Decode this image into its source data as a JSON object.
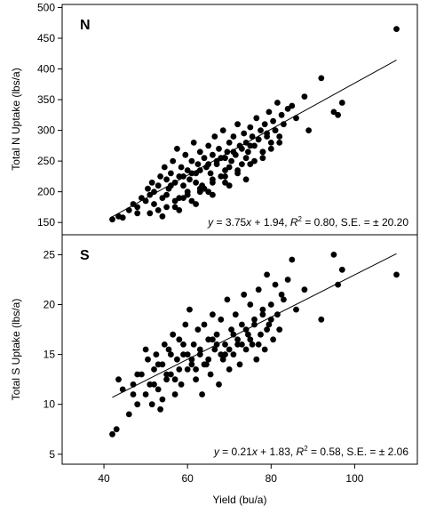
{
  "chart_data": [
    {
      "type": "scatter",
      "panel_label": "N",
      "xlabel": "",
      "ylabel": "Total N Uptake (lbs/a)",
      "xlim": [
        30,
        115
      ],
      "ylim": [
        130,
        505
      ],
      "yticks": [
        150,
        200,
        250,
        300,
        350,
        400,
        450,
        500
      ],
      "equation": {
        "prefix": "y",
        "body": " = 3.75",
        "xvar": "x",
        "mid": " + 1.94, ",
        "r2": "R",
        "sup": "2",
        "tail": " = 0.80, S.E. = ± 20.20"
      },
      "trendline": {
        "x": [
          42,
          110
        ],
        "y": [
          159.4,
          414.4
        ]
      },
      "series": [
        {
          "x": [
            42,
            43.5,
            44.5,
            46,
            47,
            48,
            49,
            50,
            50.5,
            51,
            51.5,
            52,
            53,
            53.5,
            54,
            54.5,
            55,
            55.5,
            56,
            56.5,
            57,
            57.5,
            58,
            58.5,
            59,
            59.5,
            60,
            60.5,
            61,
            61.5,
            62,
            62.5,
            63,
            63.5,
            64,
            64.5,
            65,
            65.5,
            66,
            66.5,
            67,
            67.5,
            68,
            68.5,
            69,
            69.5,
            70,
            70.5,
            71,
            71.5,
            72,
            72.5,
            73,
            73.5,
            74,
            74.5,
            75,
            75.5,
            76,
            76.5,
            77,
            77.5,
            78,
            78.5,
            79,
            79.5,
            80,
            80.5,
            81,
            81.5,
            82,
            82.5,
            83,
            84,
            85,
            86,
            88,
            89,
            92,
            95,
            96,
            97,
            110,
            52,
            55,
            58,
            60,
            62,
            64,
            66,
            68,
            70,
            72,
            74,
            76,
            78,
            80,
            82,
            56,
            59,
            61,
            63,
            65,
            67,
            69,
            71,
            73,
            75,
            77,
            79,
            81,
            57,
            60,
            63,
            66,
            69,
            72,
            75,
            78,
            54,
            58,
            62,
            66,
            70,
            74,
            53,
            57,
            61,
            65,
            69,
            48,
            51,
            55,
            59,
            63
          ],
          "y": [
            155,
            160,
            158,
            170,
            180,
            175,
            190,
            185,
            205,
            195,
            215,
            200,
            210,
            225,
            190,
            240,
            220,
            205,
            230,
            250,
            215,
            270,
            225,
            240,
            210,
            260,
            235,
            220,
            250,
            280,
            230,
            245,
            265,
            210,
            255,
            240,
            275,
            230,
            260,
            290,
            245,
            270,
            255,
            300,
            235,
            265,
            280,
            250,
            290,
            260,
            310,
            275,
            245,
            295,
            280,
            265,
            305,
            290,
            275,
            320,
            285,
            300,
            265,
            310,
            295,
            330,
            280,
            315,
            300,
            345,
            290,
            325,
            310,
            335,
            340,
            320,
            355,
            300,
            385,
            330,
            325,
            345,
            465,
            180,
            195,
            190,
            200,
            215,
            205,
            220,
            225,
            240,
            230,
            255,
            250,
            265,
            270,
            280,
            210,
            225,
            230,
            235,
            245,
            250,
            255,
            265,
            270,
            275,
            285,
            290,
            300,
            185,
            195,
            205,
            215,
            225,
            235,
            245,
            255,
            160,
            170,
            180,
            195,
            210,
            220,
            170,
            175,
            185,
            200,
            215,
            165,
            165,
            175,
            190,
            200
          ]
        }
      ]
    },
    {
      "type": "scatter",
      "panel_label": "S",
      "xlabel": "Yield (bu/a)",
      "ylabel": "Total S Uptake (lbs/a)",
      "xlim": [
        30,
        115
      ],
      "ylim": [
        4,
        27
      ],
      "yticks": [
        5,
        10,
        15,
        20,
        25
      ],
      "xticks": [
        40,
        60,
        80,
        100
      ],
      "equation": {
        "prefix": "y",
        "body": " = 0.21",
        "xvar": "x",
        "mid": " + 1.83, ",
        "r2": "R",
        "sup": "2",
        "tail": " = 0.58, S.E. = ± 2.06"
      },
      "trendline": {
        "x": [
          42,
          110
        ],
        "y": [
          10.7,
          25.1
        ]
      },
      "series": [
        {
          "x": [
            42,
            43,
            43.5,
            44.5,
            46,
            47,
            48,
            49,
            50,
            50.5,
            51,
            51.5,
            52,
            52.5,
            53,
            53.5,
            54,
            54.5,
            55,
            55.5,
            56,
            56.5,
            57,
            57.5,
            58,
            58.5,
            59,
            59.5,
            60,
            60.5,
            61,
            61.5,
            62,
            62.5,
            63,
            63.5,
            64,
            64.5,
            65,
            65.5,
            66,
            66.5,
            67,
            67.5,
            68,
            68.5,
            69,
            69.5,
            70,
            70.5,
            71,
            71.5,
            72,
            72.5,
            73,
            73.5,
            74,
            74.5,
            75,
            75.5,
            76,
            76.5,
            77,
            77.5,
            78,
            78.5,
            79,
            79.5,
            80,
            80.5,
            81,
            81.5,
            82,
            82.5,
            83,
            84,
            85,
            86,
            88,
            92,
            95,
            96,
            97,
            110,
            53,
            56,
            59,
            61,
            63,
            66,
            68,
            71,
            73,
            76,
            79,
            55,
            58,
            60,
            64,
            67,
            70,
            74,
            77,
            80,
            52,
            57,
            62,
            65,
            69,
            72,
            75,
            78,
            54,
            50,
            48,
            47
          ],
          "y": [
            7,
            7.5,
            12.5,
            11.5,
            9,
            12,
            10,
            13,
            11,
            14.5,
            12,
            10,
            13.5,
            15,
            11.5,
            9.5,
            14,
            16,
            12.5,
            15.5,
            13,
            17,
            11,
            14.5,
            16.5,
            12,
            15,
            18,
            13.5,
            19.5,
            14,
            16,
            12.5,
            17.5,
            15,
            11,
            18,
            14,
            16.5,
            13,
            19,
            15.5,
            17,
            12,
            18.5,
            14.5,
            16,
            20.5,
            13.5,
            17.5,
            15,
            19,
            16.5,
            14,
            18,
            21,
            15.5,
            17,
            20,
            16,
            18.5,
            14.5,
            21.5,
            17,
            19.5,
            15.5,
            23,
            18,
            20,
            16.5,
            22,
            19,
            17.5,
            21,
            20.5,
            22.5,
            24.5,
            19.5,
            21.5,
            18.5,
            25,
            22,
            23.5,
            23,
            14,
            15,
            16,
            14.5,
            15.5,
            16.5,
            15,
            17,
            16,
            18,
            17.5,
            13,
            13.5,
            15,
            14,
            16,
            15.5,
            17.5,
            16,
            18.5,
            12,
            12.5,
            13.5,
            14.5,
            15,
            16,
            16.5,
            19,
            10.5,
            15.5,
            13,
            11
          ]
        }
      ]
    }
  ]
}
